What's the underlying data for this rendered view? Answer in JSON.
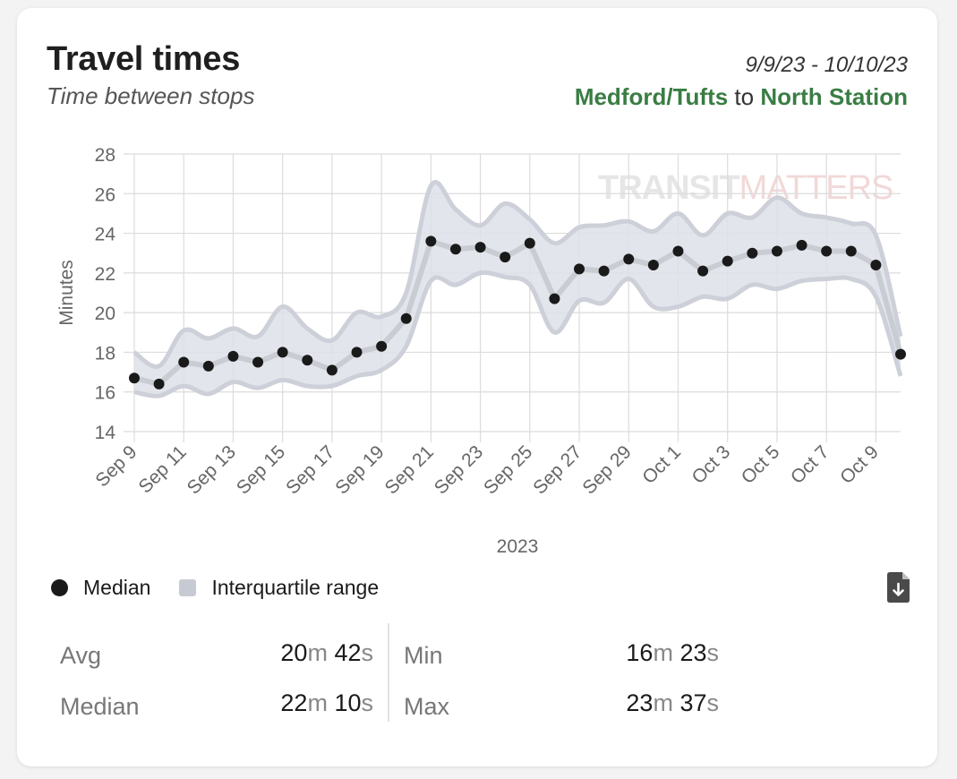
{
  "header": {
    "title": "Travel times",
    "subtitle": "Time between stops",
    "date_range": "9/9/23 - 10/10/23",
    "from_stop": "Medford/Tufts",
    "connector": "to",
    "to_stop": "North Station"
  },
  "watermark": {
    "part1": "TRANSIT",
    "part2": "MATTERS"
  },
  "colors": {
    "accent_green": "#3a7d44",
    "median_dot": "#1a1a1a",
    "iqr_fill": "#c7cad3",
    "grid": "#dcdcdc"
  },
  "chart_data": {
    "type": "line",
    "ylabel": "Minutes",
    "xlabel": "2023",
    "ylim": [
      14,
      28
    ],
    "yticks": [
      14,
      16,
      18,
      20,
      22,
      24,
      26,
      28
    ],
    "x_tick_labels": [
      "Sep 9",
      "Sep 11",
      "Sep 13",
      "Sep 15",
      "Sep 17",
      "Sep 19",
      "Sep 21",
      "Sep 23",
      "Sep 25",
      "Sep 27",
      "Sep 29",
      "Oct 1",
      "Oct 3",
      "Oct 5",
      "Oct 7",
      "Oct 9"
    ],
    "dates": [
      "2023-09-09",
      "2023-09-10",
      "2023-09-11",
      "2023-09-12",
      "2023-09-13",
      "2023-09-14",
      "2023-09-15",
      "2023-09-16",
      "2023-09-17",
      "2023-09-18",
      "2023-09-19",
      "2023-09-20",
      "2023-09-21",
      "2023-09-22",
      "2023-09-23",
      "2023-09-24",
      "2023-09-25",
      "2023-09-26",
      "2023-09-27",
      "2023-09-28",
      "2023-09-29",
      "2023-09-30",
      "2023-10-01",
      "2023-10-02",
      "2023-10-03",
      "2023-10-04",
      "2023-10-05",
      "2023-10-06",
      "2023-10-07",
      "2023-10-08",
      "2023-10-09",
      "2023-10-10"
    ],
    "series": [
      {
        "name": "Median",
        "values": [
          16.7,
          16.4,
          17.5,
          17.3,
          17.8,
          17.5,
          18.0,
          17.6,
          17.1,
          18.0,
          18.3,
          19.7,
          23.6,
          23.2,
          23.3,
          22.8,
          23.5,
          20.7,
          22.2,
          22.1,
          22.7,
          22.4,
          23.1,
          22.1,
          22.6,
          23.0,
          23.1,
          23.4,
          23.1,
          23.1,
          22.4,
          17.9
        ]
      },
      {
        "name": "Interquartile range",
        "lower": [
          16.0,
          15.8,
          16.3,
          15.9,
          16.5,
          16.2,
          16.6,
          16.3,
          16.3,
          16.8,
          17.1,
          18.3,
          21.6,
          21.4,
          22.0,
          21.8,
          21.4,
          19.0,
          20.6,
          20.5,
          21.7,
          20.3,
          20.3,
          20.8,
          20.7,
          21.4,
          21.2,
          21.6,
          21.7,
          21.7,
          20.8,
          16.8
        ],
        "upper": [
          18.0,
          17.3,
          19.1,
          18.7,
          19.2,
          18.8,
          20.3,
          19.2,
          18.6,
          20.0,
          19.8,
          21.0,
          26.4,
          25.2,
          24.4,
          25.5,
          24.7,
          23.5,
          24.3,
          24.4,
          24.6,
          24.1,
          25.0,
          23.9,
          25.0,
          24.8,
          25.8,
          25.0,
          24.8,
          24.5,
          23.9,
          18.8
        ]
      }
    ],
    "legend": {
      "position": "bottom-left",
      "median_label": "Median",
      "iqr_label": "Interquartile range"
    },
    "grid": true
  },
  "stats": {
    "avg": {
      "label": "Avg",
      "min_num": "20",
      "min_unit": "m",
      "sec_num": "42",
      "sec_unit": "s"
    },
    "median": {
      "label": "Median",
      "min_num": "22",
      "min_unit": "m",
      "sec_num": "10",
      "sec_unit": "s"
    },
    "min": {
      "label": "Min",
      "min_num": "16",
      "min_unit": "m",
      "sec_num": "23",
      "sec_unit": "s"
    },
    "max": {
      "label": "Max",
      "min_num": "23",
      "min_unit": "m",
      "sec_num": "37",
      "sec_unit": "s"
    }
  },
  "icons": {
    "download": "download-file-icon",
    "median_marker": "median-dot-icon",
    "iqr_marker": "iqr-square-icon"
  }
}
